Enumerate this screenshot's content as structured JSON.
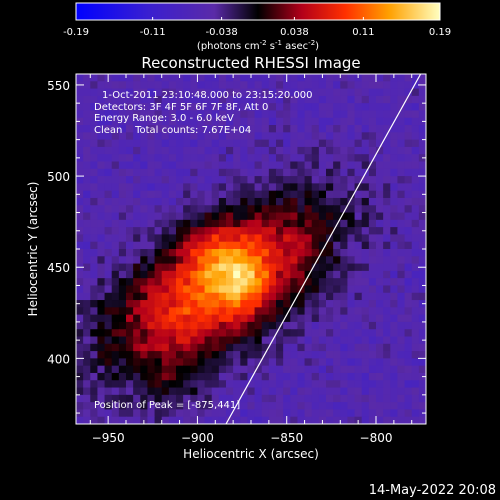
{
  "colorbar": {
    "tick_labels": [
      "-0.19",
      "-0.11",
      "-0.038",
      "0.038",
      "0.11",
      "0.19"
    ],
    "tick_values": [
      -0.19,
      -0.11,
      -0.038,
      0.038,
      0.11,
      0.19
    ],
    "unit_prefix": "(photons cm",
    "unit_exp1": "-2",
    "unit_mid": " s",
    "unit_exp2": "-1",
    "unit_mid2": " asec",
    "unit_exp3": "-2",
    "unit_suffix": ")",
    "range": [
      -0.19,
      0.19
    ],
    "colormap": "rhessi-diverging"
  },
  "plot": {
    "title": "Reconstructed RHESSI Image",
    "info_lines": [
      "1-Oct-2011 23:10:48.000 to 23:15:20.000",
      "Detectors: 3F 4F 5F 6F 7F 8F, Att 0",
      "Energy Range: 3.0 - 6.0 keV",
      "Clean    Total counts: 7.67E+04"
    ],
    "peak_label": "Position of Peak = [-875,441]"
  },
  "chart_data": {
    "type": "heatmap",
    "title": "Reconstructed RHESSI Image",
    "xlabel": "Heliocentric X (arcsec)",
    "ylabel": "Heliocentric Y (arcsec)",
    "xlim": [
      -968,
      -772
    ],
    "ylim": [
      364,
      556
    ],
    "x_ticks": [
      -950,
      -900,
      -850,
      -800
    ],
    "y_ticks": [
      400,
      450,
      500,
      550
    ],
    "peak": {
      "x": -875,
      "y": 441,
      "value": 0.19
    },
    "source_extent": {
      "x_range": [
        -945,
        -830
      ],
      "y_range": [
        375,
        505
      ]
    },
    "limb_line": [
      {
        "x": -884,
        "y": 364
      },
      {
        "x": -775,
        "y": 556
      }
    ],
    "grid": false,
    "legend": "none"
  },
  "footer": {
    "date": "14-May-2022 20:08"
  }
}
